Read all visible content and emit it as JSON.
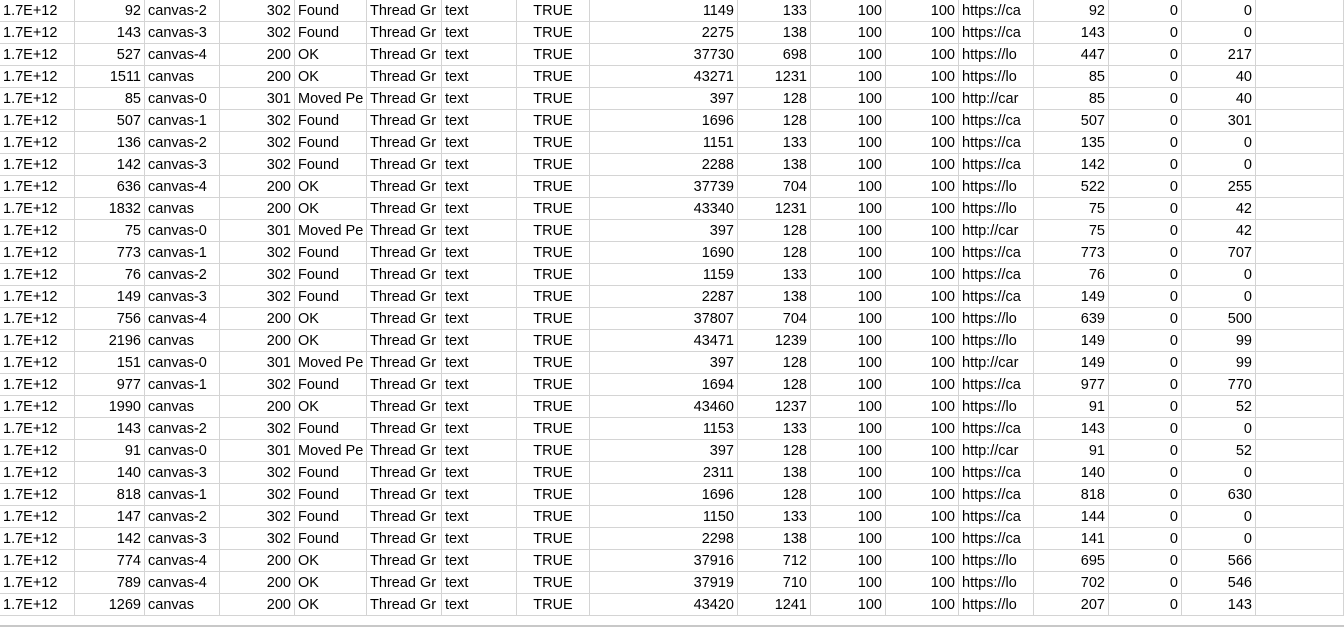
{
  "spreadsheet": {
    "rows": [
      [
        "1.7E+12",
        "92",
        "canvas-2",
        "302",
        "Found",
        "Thread Gr",
        "text",
        "TRUE",
        "1149",
        "133",
        "100",
        "100",
        "https://ca",
        "92",
        "0",
        "0"
      ],
      [
        "1.7E+12",
        "143",
        "canvas-3",
        "302",
        "Found",
        "Thread Gr",
        "text",
        "TRUE",
        "2275",
        "138",
        "100",
        "100",
        "https://ca",
        "143",
        "0",
        "0"
      ],
      [
        "1.7E+12",
        "527",
        "canvas-4",
        "200",
        "OK",
        "Thread Gr",
        "text",
        "TRUE",
        "37730",
        "698",
        "100",
        "100",
        "https://lo",
        "447",
        "0",
        "217"
      ],
      [
        "1.7E+12",
        "1511",
        "canvas",
        "200",
        "OK",
        "Thread Gr",
        "text",
        "TRUE",
        "43271",
        "1231",
        "100",
        "100",
        "https://lo",
        "85",
        "0",
        "40"
      ],
      [
        "1.7E+12",
        "85",
        "canvas-0",
        "301",
        "Moved Pe",
        "Thread Gr",
        "text",
        "TRUE",
        "397",
        "128",
        "100",
        "100",
        "http://car",
        "85",
        "0",
        "40"
      ],
      [
        "1.7E+12",
        "507",
        "canvas-1",
        "302",
        "Found",
        "Thread Gr",
        "text",
        "TRUE",
        "1696",
        "128",
        "100",
        "100",
        "https://ca",
        "507",
        "0",
        "301"
      ],
      [
        "1.7E+12",
        "136",
        "canvas-2",
        "302",
        "Found",
        "Thread Gr",
        "text",
        "TRUE",
        "1151",
        "133",
        "100",
        "100",
        "https://ca",
        "135",
        "0",
        "0"
      ],
      [
        "1.7E+12",
        "142",
        "canvas-3",
        "302",
        "Found",
        "Thread Gr",
        "text",
        "TRUE",
        "2288",
        "138",
        "100",
        "100",
        "https://ca",
        "142",
        "0",
        "0"
      ],
      [
        "1.7E+12",
        "636",
        "canvas-4",
        "200",
        "OK",
        "Thread Gr",
        "text",
        "TRUE",
        "37739",
        "704",
        "100",
        "100",
        "https://lo",
        "522",
        "0",
        "255"
      ],
      [
        "1.7E+12",
        "1832",
        "canvas",
        "200",
        "OK",
        "Thread Gr",
        "text",
        "TRUE",
        "43340",
        "1231",
        "100",
        "100",
        "https://lo",
        "75",
        "0",
        "42"
      ],
      [
        "1.7E+12",
        "75",
        "canvas-0",
        "301",
        "Moved Pe",
        "Thread Gr",
        "text",
        "TRUE",
        "397",
        "128",
        "100",
        "100",
        "http://car",
        "75",
        "0",
        "42"
      ],
      [
        "1.7E+12",
        "773",
        "canvas-1",
        "302",
        "Found",
        "Thread Gr",
        "text",
        "TRUE",
        "1690",
        "128",
        "100",
        "100",
        "https://ca",
        "773",
        "0",
        "707"
      ],
      [
        "1.7E+12",
        "76",
        "canvas-2",
        "302",
        "Found",
        "Thread Gr",
        "text",
        "TRUE",
        "1159",
        "133",
        "100",
        "100",
        "https://ca",
        "76",
        "0",
        "0"
      ],
      [
        "1.7E+12",
        "149",
        "canvas-3",
        "302",
        "Found",
        "Thread Gr",
        "text",
        "TRUE",
        "2287",
        "138",
        "100",
        "100",
        "https://ca",
        "149",
        "0",
        "0"
      ],
      [
        "1.7E+12",
        "756",
        "canvas-4",
        "200",
        "OK",
        "Thread Gr",
        "text",
        "TRUE",
        "37807",
        "704",
        "100",
        "100",
        "https://lo",
        "639",
        "0",
        "500"
      ],
      [
        "1.7E+12",
        "2196",
        "canvas",
        "200",
        "OK",
        "Thread Gr",
        "text",
        "TRUE",
        "43471",
        "1239",
        "100",
        "100",
        "https://lo",
        "149",
        "0",
        "99"
      ],
      [
        "1.7E+12",
        "151",
        "canvas-0",
        "301",
        "Moved Pe",
        "Thread Gr",
        "text",
        "TRUE",
        "397",
        "128",
        "100",
        "100",
        "http://car",
        "149",
        "0",
        "99"
      ],
      [
        "1.7E+12",
        "977",
        "canvas-1",
        "302",
        "Found",
        "Thread Gr",
        "text",
        "TRUE",
        "1694",
        "128",
        "100",
        "100",
        "https://ca",
        "977",
        "0",
        "770"
      ],
      [
        "1.7E+12",
        "1990",
        "canvas",
        "200",
        "OK",
        "Thread Gr",
        "text",
        "TRUE",
        "43460",
        "1237",
        "100",
        "100",
        "https://lo",
        "91",
        "0",
        "52"
      ],
      [
        "1.7E+12",
        "143",
        "canvas-2",
        "302",
        "Found",
        "Thread Gr",
        "text",
        "TRUE",
        "1153",
        "133",
        "100",
        "100",
        "https://ca",
        "143",
        "0",
        "0"
      ],
      [
        "1.7E+12",
        "91",
        "canvas-0",
        "301",
        "Moved Pe",
        "Thread Gr",
        "text",
        "TRUE",
        "397",
        "128",
        "100",
        "100",
        "http://car",
        "91",
        "0",
        "52"
      ],
      [
        "1.7E+12",
        "140",
        "canvas-3",
        "302",
        "Found",
        "Thread Gr",
        "text",
        "TRUE",
        "2311",
        "138",
        "100",
        "100",
        "https://ca",
        "140",
        "0",
        "0"
      ],
      [
        "1.7E+12",
        "818",
        "canvas-1",
        "302",
        "Found",
        "Thread Gr",
        "text",
        "TRUE",
        "1696",
        "128",
        "100",
        "100",
        "https://ca",
        "818",
        "0",
        "630"
      ],
      [
        "1.7E+12",
        "147",
        "canvas-2",
        "302",
        "Found",
        "Thread Gr",
        "text",
        "TRUE",
        "1150",
        "133",
        "100",
        "100",
        "https://ca",
        "144",
        "0",
        "0"
      ],
      [
        "1.7E+12",
        "142",
        "canvas-3",
        "302",
        "Found",
        "Thread Gr",
        "text",
        "TRUE",
        "2298",
        "138",
        "100",
        "100",
        "https://ca",
        "141",
        "0",
        "0"
      ],
      [
        "1.7E+12",
        "774",
        "canvas-4",
        "200",
        "OK",
        "Thread Gr",
        "text",
        "TRUE",
        "37916",
        "712",
        "100",
        "100",
        "https://lo",
        "695",
        "0",
        "566"
      ],
      [
        "1.7E+12",
        "789",
        "canvas-4",
        "200",
        "OK",
        "Thread Gr",
        "text",
        "TRUE",
        "37919",
        "710",
        "100",
        "100",
        "https://lo",
        "702",
        "0",
        "546"
      ],
      [
        "1.7E+12",
        "1269",
        "canvas",
        "200",
        "OK",
        "Thread Gr",
        "text",
        "TRUE",
        "43420",
        "1241",
        "100",
        "100",
        "https://lo",
        "207",
        "0",
        "143"
      ]
    ]
  }
}
